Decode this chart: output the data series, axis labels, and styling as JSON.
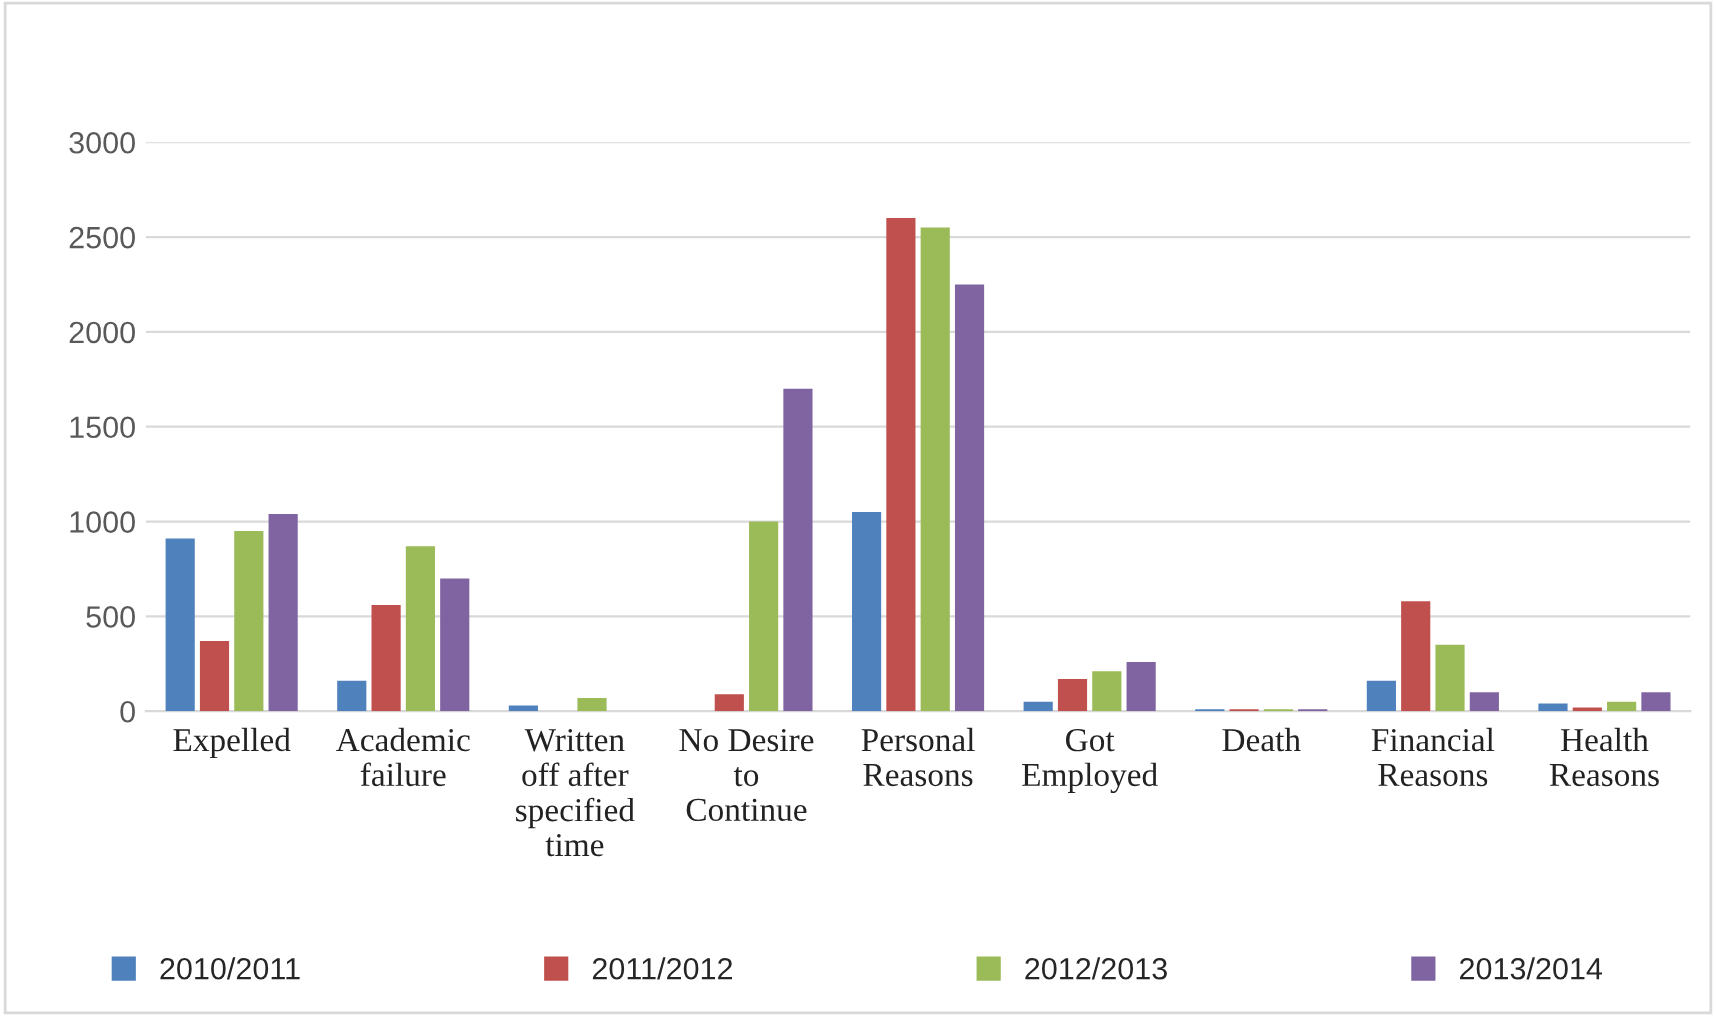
{
  "chart_data": {
    "type": "bar",
    "categories": [
      "Expelled",
      "Academic\nfailure",
      "Written\noff after\nspecified\ntime",
      "No Desire\nto\nContinue",
      "Personal\nReasons",
      "Got\nEmployed",
      "Death",
      "Financial\nReasons",
      "Health\nReasons"
    ],
    "series": [
      {
        "name": "2010/2011",
        "color": "#4f81bd",
        "values": [
          910,
          160,
          30,
          null,
          1050,
          50,
          10,
          160,
          40
        ]
      },
      {
        "name": "2011/2012",
        "color": "#c0504d",
        "values": [
          370,
          560,
          null,
          90,
          2600,
          170,
          10,
          580,
          20
        ]
      },
      {
        "name": "2012/2013",
        "color": "#9bbb59",
        "values": [
          950,
          870,
          70,
          1000,
          2550,
          210,
          10,
          350,
          50
        ]
      },
      {
        "name": "2013/2014",
        "color": "#8064a2",
        "values": [
          1040,
          700,
          null,
          1700,
          2250,
          260,
          10,
          100,
          100
        ]
      }
    ],
    "ylim": [
      0,
      3000
    ],
    "yticks": [
      0,
      500,
      1000,
      1500,
      2000,
      2500,
      3000
    ],
    "grid": "y",
    "legend": "bottom"
  }
}
